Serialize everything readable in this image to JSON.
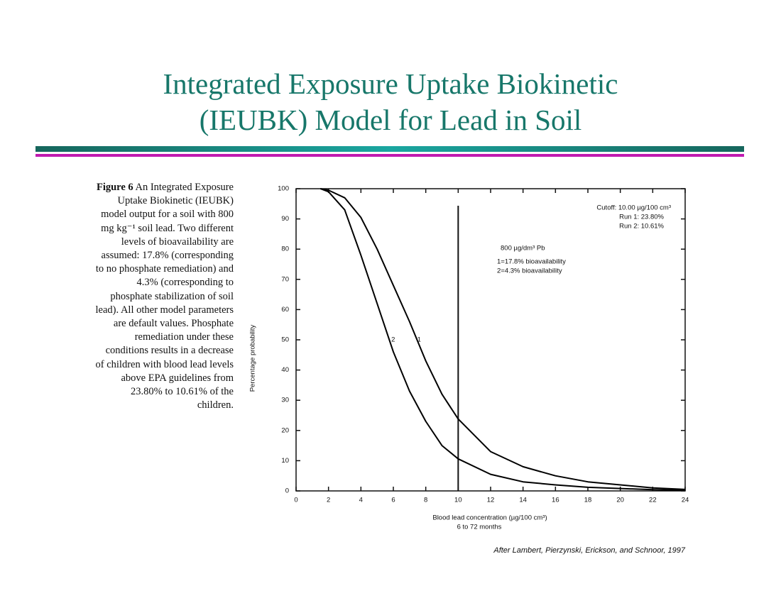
{
  "slide": {
    "title_lines": [
      "Integrated Exposure Uptake Biokinetic",
      "(IEUBK) Model for Lead in Soil"
    ],
    "figure_label": "Figure 6",
    "caption": "An Integrated Exposure Uptake Biokinetic (IEUBK) model output for a soil with 800 mg kg⁻¹ soil lead. Two different levels of bioavailability are assumed: 17.8% (corresponding to no phosphate remediation) and 4.3% (corresponding to phosphate stabilization of soil lead). All other model parameters are default values. Phosphate remediation under these conditions results in a decrease of children with blood lead levels above EPA guidelines from 23.80% to 10.61% of the children.",
    "citation": "After Lambert, Pierzynski, Erickson, and Schnoor, 1997"
  },
  "chart_data": {
    "type": "line",
    "x_label": "Blood lead concentration (µg/100 cm³)",
    "x_sublabel": "6 to 72 months",
    "y_label": "Percentage probability",
    "x": [
      1.5,
      2,
      3,
      4,
      5,
      6,
      7,
      8,
      9,
      10,
      12,
      14,
      16,
      18,
      20,
      22,
      24
    ],
    "series": [
      {
        "name": "1",
        "color": "#000000",
        "values": [
          100,
          99.5,
          97,
          90.5,
          80,
          68,
          56,
          43,
          32,
          23.8,
          13,
          8,
          5,
          3,
          2,
          1,
          0.5
        ]
      },
      {
        "name": "2",
        "color": "#000000",
        "values": [
          100,
          99,
          93,
          78,
          62,
          46,
          33,
          23,
          15,
          10.61,
          5.5,
          3,
          2,
          1.2,
          0.8,
          0.4,
          0.2
        ]
      }
    ],
    "cutoff_x": 10,
    "annotations": [
      "Cutoff: 10.00 µg/100 cm³",
      "Run 1: 23.80%",
      "Run 2: 10.61%",
      "800 µg/dm³ Pb",
      "1=17.8% bioavailability",
      "2=4.3% bioavailability"
    ],
    "xlim": [
      0,
      24
    ],
    "xticks": [
      0,
      2,
      4,
      6,
      8,
      10,
      12,
      14,
      16,
      18,
      20,
      22,
      24
    ],
    "ylim": [
      0,
      100
    ],
    "yticks": [
      0,
      10,
      20,
      30,
      40,
      50,
      60,
      70,
      80,
      90,
      100
    ],
    "grid": false
  }
}
